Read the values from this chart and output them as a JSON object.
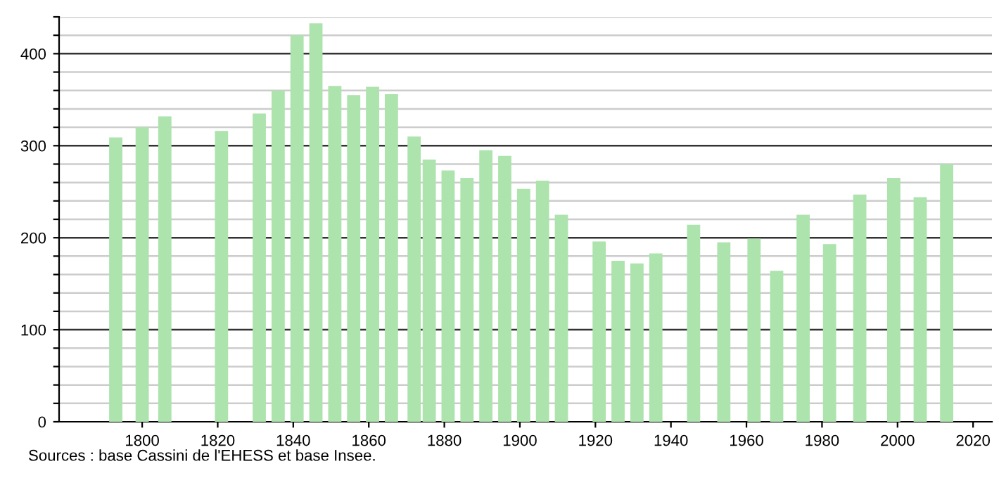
{
  "chart_data": {
    "type": "bar",
    "x": [
      1793,
      1800,
      1806,
      1821,
      1831,
      1836,
      1841,
      1846,
      1851,
      1856,
      1861,
      1866,
      1872,
      1876,
      1881,
      1886,
      1891,
      1896,
      1901,
      1906,
      1911,
      1921,
      1926,
      1931,
      1936,
      1946,
      1954,
      1962,
      1968,
      1975,
      1982,
      1990,
      1999,
      2006,
      2013
    ],
    "values": [
      309,
      320,
      332,
      316,
      335,
      360,
      420,
      433,
      365,
      355,
      364,
      356,
      310,
      285,
      273,
      265,
      295,
      289,
      253,
      262,
      225,
      196,
      175,
      172,
      183,
      214,
      195,
      199,
      164,
      225,
      193,
      247,
      265,
      244,
      280
    ],
    "color": "#ade3ad",
    "xlim": [
      1778,
      2025
    ],
    "xticks": [
      1800,
      1820,
      1840,
      1860,
      1880,
      1900,
      1920,
      1940,
      1960,
      1980,
      2000,
      2020
    ],
    "ylim": [
      0,
      440
    ],
    "yticks": [
      0,
      {
        "value": 20,
        "label": null
      },
      {
        "value": 40,
        "label": null
      },
      {
        "value": 60,
        "label": null
      },
      {
        "value": 80,
        "label": null
      },
      100,
      {
        "value": 120,
        "label": null
      },
      {
        "value": 140,
        "label": null
      },
      {
        "value": 160,
        "label": null
      },
      {
        "value": 180,
        "label": null
      },
      200,
      {
        "value": 220,
        "label": null
      },
      {
        "value": 240,
        "label": null
      },
      {
        "value": 260,
        "label": null
      },
      {
        "value": 280,
        "label": null
      },
      300,
      {
        "value": 320,
        "label": null
      },
      {
        "value": 340,
        "label": null
      },
      {
        "value": 360,
        "label": null
      },
      {
        "value": 380,
        "label": null
      },
      400,
      {
        "value": 420,
        "label": null
      },
      {
        "value": 440,
        "label": null
      }
    ],
    "grid": "y",
    "annotations": [
      "Sources : base Cassini de l'EHESS et base Insee."
    ]
  }
}
